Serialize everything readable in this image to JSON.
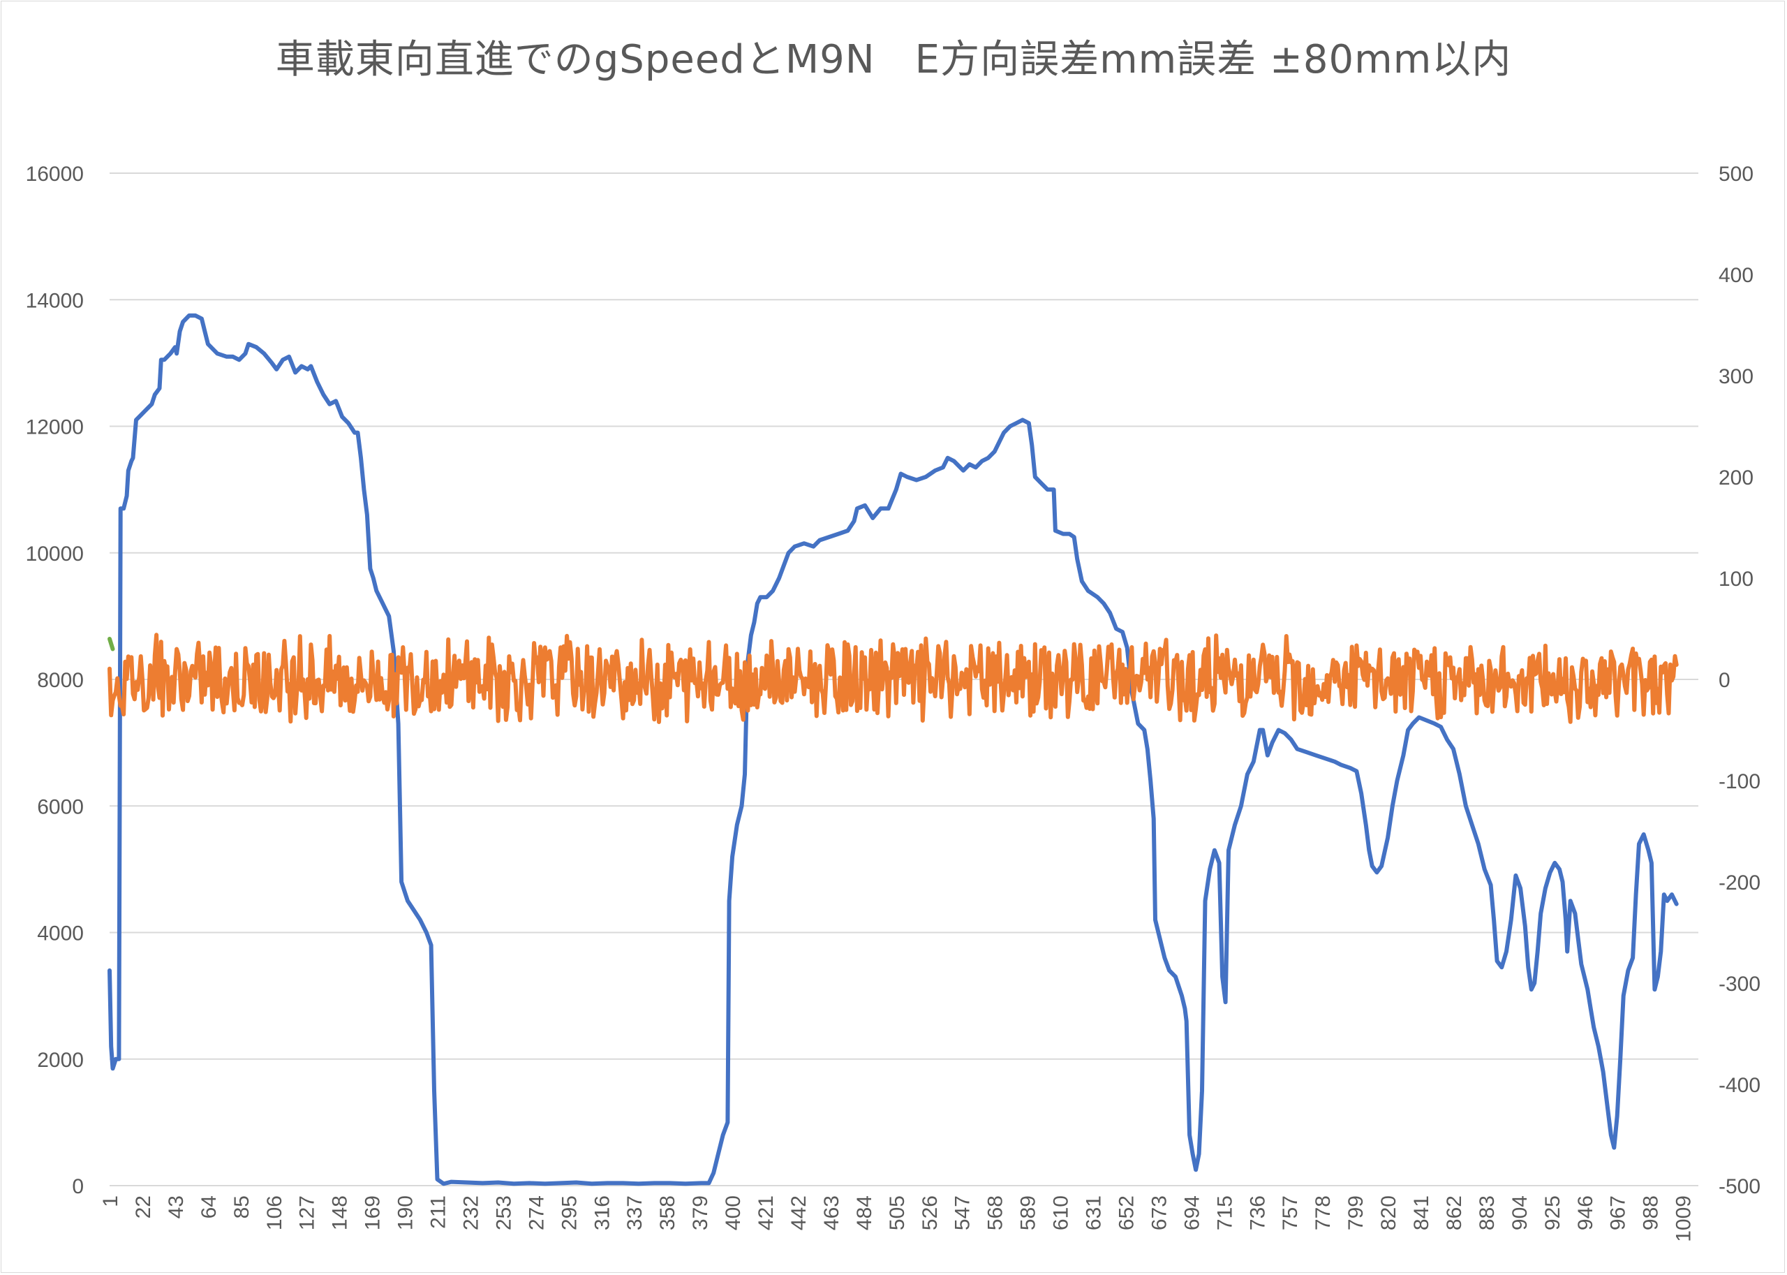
{
  "chart_data": {
    "type": "line",
    "title": "車載東向直進でのgSpeedとM9N　E方向誤差mm誤差 ±80mm以内",
    "xlabel": "",
    "ylabel": "",
    "y2label": "",
    "x_tick_labels": [
      "1",
      "22",
      "43",
      "64",
      "85",
      "106",
      "127",
      "148",
      "169",
      "190",
      "211",
      "232",
      "253",
      "274",
      "295",
      "316",
      "337",
      "358",
      "379",
      "400",
      "421",
      "442",
      "463",
      "484",
      "505",
      "526",
      "547",
      "568",
      "589",
      "610",
      "631",
      "652",
      "673",
      "694",
      "715",
      "736",
      "757",
      "778",
      "799",
      "820",
      "841",
      "862",
      "883",
      "904",
      "925",
      "946",
      "967",
      "988",
      "1009"
    ],
    "x_range": [
      1,
      1019
    ],
    "y_left": {
      "min": 0,
      "max": 16000,
      "ticks": [
        0,
        2000,
        4000,
        6000,
        8000,
        10000,
        12000,
        14000,
        16000
      ]
    },
    "y_right": {
      "min": -500,
      "max": 500,
      "ticks": [
        -500,
        -400,
        -300,
        -200,
        -100,
        0,
        100,
        200,
        300,
        400,
        500
      ]
    },
    "grid": true,
    "legend": "none",
    "series": [
      {
        "axis": "left",
        "color": "#4472c4",
        "points": [
          [
            1,
            3400
          ],
          [
            2,
            2200
          ],
          [
            3,
            1850
          ],
          [
            5,
            2000
          ],
          [
            7,
            2000
          ],
          [
            8,
            10700
          ],
          [
            10,
            10700
          ],
          [
            12,
            10900
          ],
          [
            13,
            11300
          ],
          [
            15,
            11450
          ],
          [
            16,
            11500
          ],
          [
            18,
            12100
          ],
          [
            20,
            12150
          ],
          [
            24,
            12250
          ],
          [
            28,
            12350
          ],
          [
            30,
            12500
          ],
          [
            33,
            12600
          ],
          [
            34,
            13050
          ],
          [
            36,
            13050
          ],
          [
            40,
            13150
          ],
          [
            43,
            13250
          ],
          [
            44,
            13150
          ],
          [
            46,
            13500
          ],
          [
            48,
            13650
          ],
          [
            52,
            13750
          ],
          [
            56,
            13750
          ],
          [
            60,
            13700
          ],
          [
            62,
            13500
          ],
          [
            64,
            13300
          ],
          [
            70,
            13150
          ],
          [
            76,
            13100
          ],
          [
            80,
            13100
          ],
          [
            84,
            13050
          ],
          [
            88,
            13150
          ],
          [
            90,
            13300
          ],
          [
            95,
            13250
          ],
          [
            100,
            13150
          ],
          [
            105,
            13000
          ],
          [
            108,
            12900
          ],
          [
            112,
            13050
          ],
          [
            116,
            13100
          ],
          [
            120,
            12850
          ],
          [
            124,
            12950
          ],
          [
            128,
            12900
          ],
          [
            130,
            12950
          ],
          [
            134,
            12700
          ],
          [
            138,
            12500
          ],
          [
            142,
            12350
          ],
          [
            146,
            12400
          ],
          [
            150,
            12150
          ],
          [
            154,
            12050
          ],
          [
            158,
            11900
          ],
          [
            160,
            11900
          ],
          [
            162,
            11500
          ],
          [
            164,
            11000
          ],
          [
            166,
            10600
          ],
          [
            168,
            9750
          ],
          [
            170,
            9600
          ],
          [
            172,
            9400
          ],
          [
            174,
            9300
          ],
          [
            176,
            9200
          ],
          [
            178,
            9100
          ],
          [
            180,
            9000
          ],
          [
            183,
            8450
          ],
          [
            186,
            7300
          ],
          [
            188,
            4800
          ],
          [
            192,
            4500
          ],
          [
            196,
            4350
          ],
          [
            200,
            4200
          ],
          [
            204,
            4000
          ],
          [
            207,
            3800
          ],
          [
            209,
            1500
          ],
          [
            211,
            100
          ],
          [
            215,
            30
          ],
          [
            220,
            60
          ],
          [
            230,
            50
          ],
          [
            240,
            40
          ],
          [
            250,
            50
          ],
          [
            260,
            30
          ],
          [
            270,
            40
          ],
          [
            280,
            30
          ],
          [
            290,
            40
          ],
          [
            300,
            50
          ],
          [
            310,
            30
          ],
          [
            320,
            40
          ],
          [
            330,
            40
          ],
          [
            340,
            30
          ],
          [
            350,
            40
          ],
          [
            360,
            40
          ],
          [
            370,
            30
          ],
          [
            380,
            40
          ],
          [
            385,
            40
          ],
          [
            388,
            200
          ],
          [
            391,
            500
          ],
          [
            394,
            800
          ],
          [
            397,
            1000
          ],
          [
            398,
            4500
          ],
          [
            400,
            5200
          ],
          [
            403,
            5700
          ],
          [
            406,
            6000
          ],
          [
            408,
            6500
          ],
          [
            409,
            7500
          ],
          [
            410,
            8300
          ],
          [
            412,
            8700
          ],
          [
            414,
            8900
          ],
          [
            416,
            9200
          ],
          [
            418,
            9300
          ],
          [
            422,
            9300
          ],
          [
            426,
            9400
          ],
          [
            430,
            9600
          ],
          [
            433,
            9800
          ],
          [
            436,
            10000
          ],
          [
            440,
            10100
          ],
          [
            446,
            10150
          ],
          [
            452,
            10100
          ],
          [
            456,
            10200
          ],
          [
            462,
            10250
          ],
          [
            468,
            10300
          ],
          [
            474,
            10350
          ],
          [
            478,
            10500
          ],
          [
            480,
            10700
          ],
          [
            485,
            10750
          ],
          [
            490,
            10550
          ],
          [
            495,
            10700
          ],
          [
            500,
            10700
          ],
          [
            505,
            11000
          ],
          [
            508,
            11250
          ],
          [
            512,
            11200
          ],
          [
            518,
            11150
          ],
          [
            524,
            11200
          ],
          [
            530,
            11300
          ],
          [
            535,
            11350
          ],
          [
            538,
            11500
          ],
          [
            542,
            11450
          ],
          [
            548,
            11300
          ],
          [
            552,
            11400
          ],
          [
            556,
            11350
          ],
          [
            560,
            11450
          ],
          [
            564,
            11500
          ],
          [
            568,
            11600
          ],
          [
            571,
            11750
          ],
          [
            574,
            11900
          ],
          [
            578,
            12000
          ],
          [
            582,
            12050
          ],
          [
            586,
            12100
          ],
          [
            590,
            12050
          ],
          [
            592,
            11700
          ],
          [
            594,
            11200
          ],
          [
            598,
            11100
          ],
          [
            602,
            11000
          ],
          [
            606,
            11000
          ],
          [
            607,
            10350
          ],
          [
            612,
            10300
          ],
          [
            616,
            10300
          ],
          [
            619,
            10250
          ],
          [
            621,
            9900
          ],
          [
            624,
            9550
          ],
          [
            628,
            9400
          ],
          [
            634,
            9300
          ],
          [
            638,
            9200
          ],
          [
            642,
            9050
          ],
          [
            646,
            8800
          ],
          [
            650,
            8750
          ],
          [
            653,
            8500
          ],
          [
            656,
            7800
          ],
          [
            660,
            7300
          ],
          [
            664,
            7200
          ],
          [
            666,
            6900
          ],
          [
            668,
            6400
          ],
          [
            670,
            5800
          ],
          [
            671,
            4200
          ],
          [
            674,
            3900
          ],
          [
            677,
            3600
          ],
          [
            680,
            3400
          ],
          [
            684,
            3300
          ],
          [
            686,
            3150
          ],
          [
            688,
            3000
          ],
          [
            690,
            2800
          ],
          [
            691,
            2600
          ],
          [
            693,
            800
          ],
          [
            695,
            500
          ],
          [
            697,
            250
          ],
          [
            699,
            500
          ],
          [
            701,
            1500
          ],
          [
            703,
            4500
          ],
          [
            706,
            5000
          ],
          [
            709,
            5300
          ],
          [
            712,
            5100
          ],
          [
            714,
            3300
          ],
          [
            716,
            2900
          ],
          [
            718,
            5300
          ],
          [
            722,
            5700
          ],
          [
            726,
            6000
          ],
          [
            730,
            6500
          ],
          [
            734,
            6700
          ],
          [
            738,
            7200
          ],
          [
            740,
            7200
          ],
          [
            743,
            6800
          ],
          [
            746,
            7000
          ],
          [
            750,
            7200
          ],
          [
            754,
            7150
          ],
          [
            758,
            7050
          ],
          [
            762,
            6900
          ],
          [
            768,
            6850
          ],
          [
            774,
            6800
          ],
          [
            780,
            6750
          ],
          [
            786,
            6700
          ],
          [
            790,
            6650
          ],
          [
            796,
            6600
          ],
          [
            800,
            6550
          ],
          [
            803,
            6200
          ],
          [
            806,
            5700
          ],
          [
            808,
            5300
          ],
          [
            810,
            5050
          ],
          [
            813,
            4950
          ],
          [
            816,
            5050
          ],
          [
            820,
            5500
          ],
          [
            823,
            6000
          ],
          [
            826,
            6400
          ],
          [
            830,
            6800
          ],
          [
            833,
            7200
          ],
          [
            836,
            7300
          ],
          [
            840,
            7400
          ],
          [
            845,
            7350
          ],
          [
            850,
            7300
          ],
          [
            854,
            7250
          ],
          [
            858,
            7050
          ],
          [
            862,
            6900
          ],
          [
            866,
            6500
          ],
          [
            870,
            6000
          ],
          [
            874,
            5700
          ],
          [
            878,
            5400
          ],
          [
            882,
            5000
          ],
          [
            886,
            4750
          ],
          [
            888,
            4200
          ],
          [
            890,
            3550
          ],
          [
            893,
            3450
          ],
          [
            896,
            3700
          ],
          [
            899,
            4200
          ],
          [
            902,
            4900
          ],
          [
            905,
            4700
          ],
          [
            908,
            4100
          ],
          [
            910,
            3450
          ],
          [
            912,
            3100
          ],
          [
            914,
            3200
          ],
          [
            916,
            3700
          ],
          [
            918,
            4300
          ],
          [
            921,
            4700
          ],
          [
            924,
            4950
          ],
          [
            927,
            5100
          ],
          [
            930,
            5000
          ],
          [
            932,
            4800
          ],
          [
            934,
            4200
          ],
          [
            935,
            3700
          ],
          [
            937,
            4500
          ],
          [
            940,
            4300
          ],
          [
            942,
            3900
          ],
          [
            944,
            3500
          ],
          [
            946,
            3300
          ],
          [
            948,
            3100
          ],
          [
            950,
            2800
          ],
          [
            952,
            2500
          ],
          [
            955,
            2200
          ],
          [
            958,
            1800
          ],
          [
            961,
            1200
          ],
          [
            963,
            800
          ],
          [
            965,
            600
          ],
          [
            967,
            1100
          ],
          [
            969,
            2000
          ],
          [
            971,
            3000
          ],
          [
            974,
            3400
          ],
          [
            977,
            3600
          ],
          [
            979,
            4600
          ],
          [
            981,
            5400
          ],
          [
            984,
            5550
          ],
          [
            987,
            5300
          ],
          [
            989,
            5100
          ],
          [
            991,
            3100
          ],
          [
            993,
            3300
          ],
          [
            995,
            3700
          ],
          [
            997,
            4600
          ],
          [
            999,
            4500
          ],
          [
            1002,
            4600
          ],
          [
            1005,
            4450
          ]
        ]
      },
      {
        "axis": "right",
        "color": "#ed7d31",
        "amplitude": 45,
        "x_from": 1,
        "x_to": 1005
      },
      {
        "axis": "right",
        "color": "#70ad47",
        "x_from": 1,
        "x_to": 3,
        "values": [
          40,
          30
        ]
      }
    ]
  }
}
